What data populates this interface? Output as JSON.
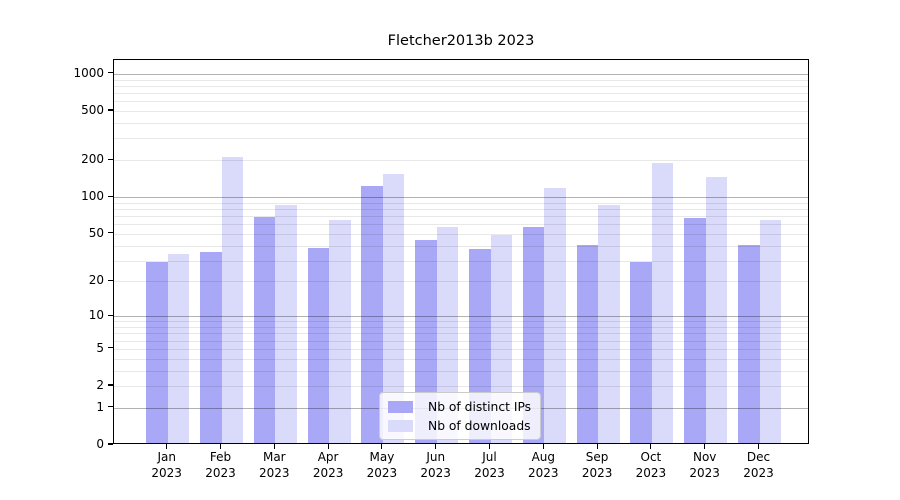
{
  "chart_data": {
    "type": "bar",
    "title": "Fletcher2013b 2023",
    "xlabel": "",
    "ylabel": "",
    "categories": [
      "Jan",
      "Feb",
      "Mar",
      "Apr",
      "May",
      "Jun",
      "Jul",
      "Aug",
      "Sep",
      "Oct",
      "Nov",
      "Dec"
    ],
    "x_year": "2023",
    "series": [
      {
        "name": "Nb of distinct IPs",
        "color": "#a8a8f6",
        "values": [
          28,
          34,
          66,
          37,
          118,
          43,
          36,
          55,
          39,
          28,
          65,
          39
        ]
      },
      {
        "name": "Nb of downloads",
        "color": "#dadafb",
        "values": [
          33,
          203,
          83,
          62,
          150,
          55,
          47,
          115,
          83,
          182,
          141,
          62
        ]
      }
    ],
    "y_axis": {
      "scale": "log1p",
      "ylim": [
        0,
        1000
      ],
      "ticks": [
        0,
        1,
        2,
        5,
        10,
        20,
        50,
        100,
        200,
        500,
        1000
      ],
      "major_gridlines": [
        1,
        10,
        100,
        1000
      ],
      "minor_gridlines": [
        2,
        3,
        4,
        5,
        6,
        7,
        8,
        9,
        20,
        30,
        40,
        50,
        60,
        70,
        80,
        90,
        200,
        300,
        400,
        500,
        600,
        700,
        800,
        900
      ]
    },
    "legend": {
      "position": "lower center"
    }
  }
}
